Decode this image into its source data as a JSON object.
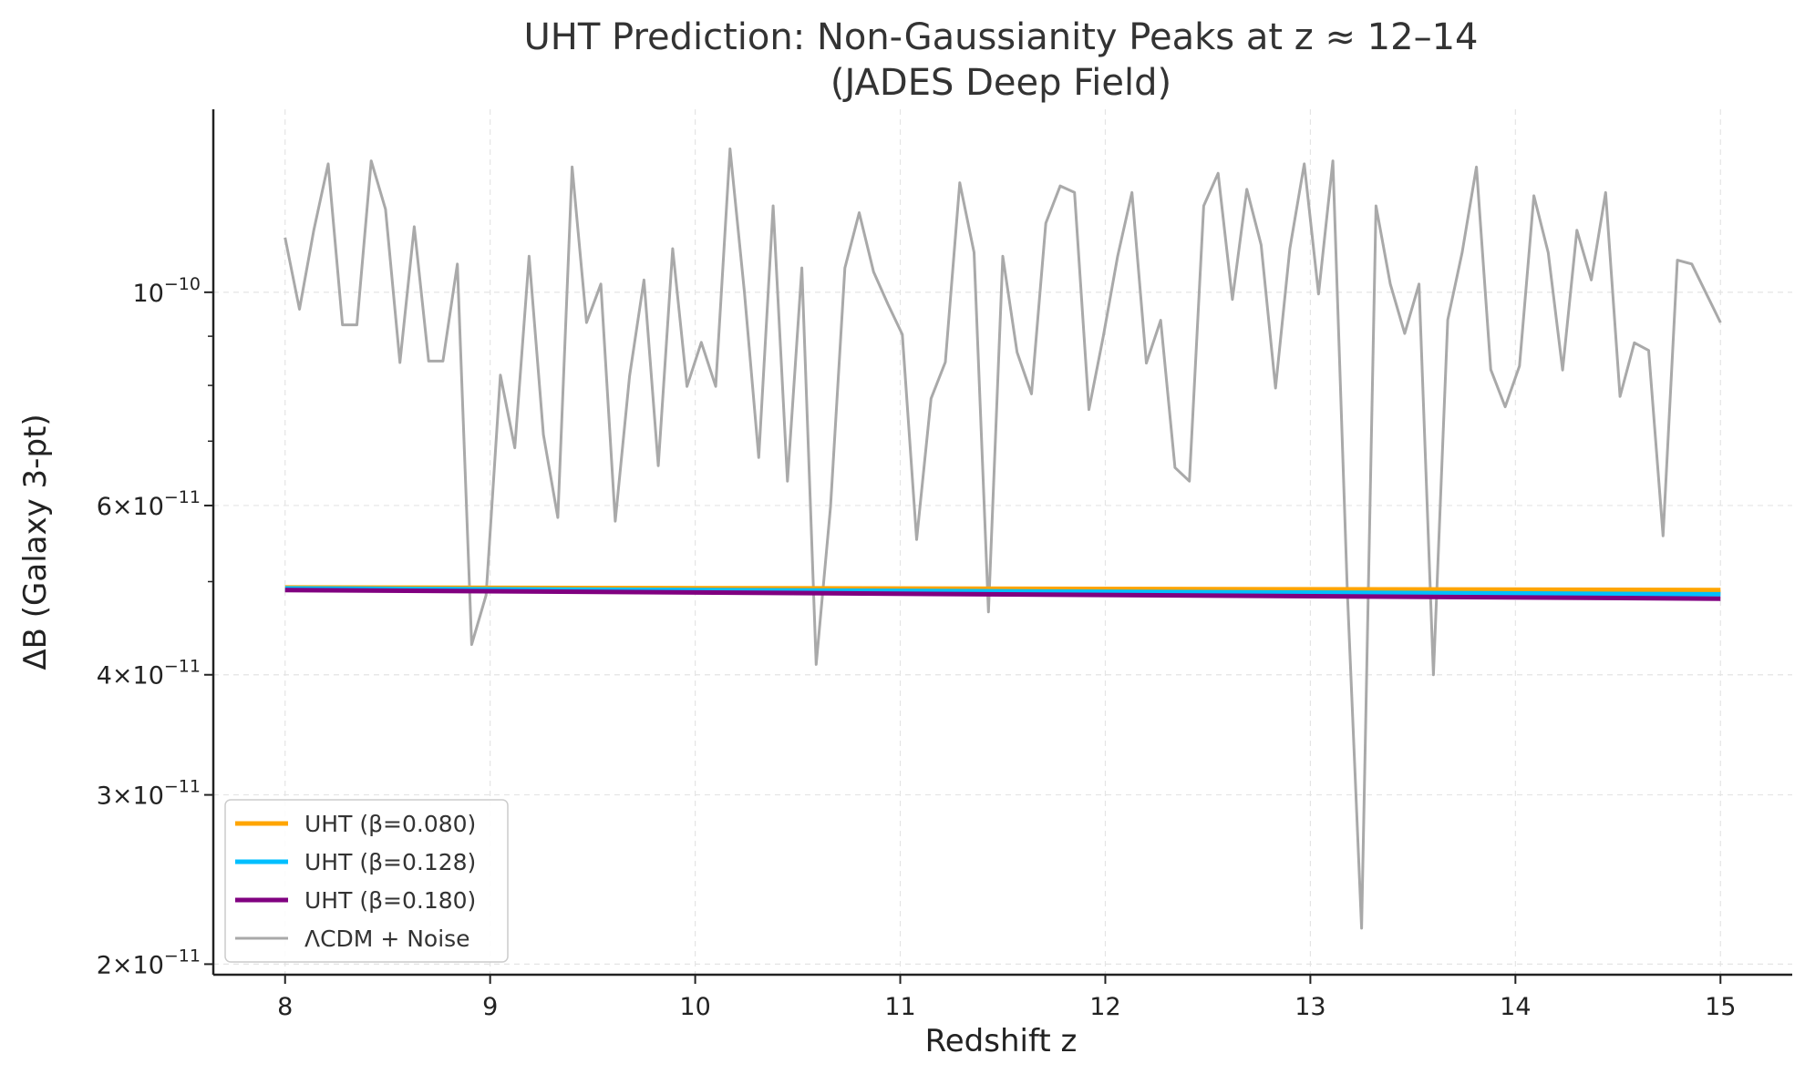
{
  "chart_data": {
    "type": "line",
    "title": "UHT Prediction: Non-Gaussianity Peaks at z ≈ 12–14",
    "subtitle": "(JADES Deep Field)",
    "xlabel": "Redshift z",
    "ylabel": "ΔB (Galaxy 3-pt)",
    "yscale": "log",
    "xlim": [
      7.65,
      15.35
    ],
    "ylim": [
      1.95e-11,
      1.55e-10
    ],
    "grid": true,
    "legend_position": "lower-left",
    "x_ticks": [
      {
        "value": 8,
        "label": "8"
      },
      {
        "value": 9,
        "label": "9"
      },
      {
        "value": 10,
        "label": "10"
      },
      {
        "value": 11,
        "label": "11"
      },
      {
        "value": 12,
        "label": "12"
      },
      {
        "value": 13,
        "label": "13"
      },
      {
        "value": 14,
        "label": "14"
      },
      {
        "value": 15,
        "label": "15"
      }
    ],
    "y_ticks": [
      {
        "value": 2e-11,
        "mantissa": "2",
        "base": "10",
        "exp": "−11"
      },
      {
        "value": 3e-11,
        "mantissa": "3",
        "base": "10",
        "exp": "−11"
      },
      {
        "value": 4e-11,
        "mantissa": "4",
        "base": "10",
        "exp": "−11"
      },
      {
        "value": 6e-11,
        "mantissa": "6",
        "base": "10",
        "exp": "−11"
      },
      {
        "value": 1e-10,
        "mantissa": "",
        "base": "10",
        "exp": "−10"
      }
    ],
    "y_minor_ticks": [
      5e-11,
      7e-11,
      8e-11,
      9e-11
    ],
    "series": [
      {
        "name": "UHT (β=0.080)",
        "color": "#FFA500",
        "line_width": 5,
        "x": [
          8,
          15
        ],
        "y": [
          4.93e-11,
          4.9e-11
        ]
      },
      {
        "name": "UHT (β=0.128)",
        "color": "#00BFFF",
        "line_width": 5,
        "x": [
          8,
          15
        ],
        "y": [
          4.92e-11,
          4.85e-11
        ]
      },
      {
        "name": "UHT (β=0.180)",
        "color": "#800080",
        "line_width": 5,
        "x": [
          8,
          15
        ],
        "y": [
          4.9e-11,
          4.8e-11
        ]
      },
      {
        "name": "ΛCDM + Noise",
        "color": "#A9A9A9",
        "line_width": 3,
        "x": [
          8.0,
          8.07,
          8.14,
          8.21,
          8.28,
          8.35,
          8.42,
          8.49,
          8.56,
          8.63,
          8.7,
          8.77,
          8.84,
          8.91,
          8.98,
          9.05,
          9.12,
          9.19,
          9.26,
          9.33,
          9.4,
          9.47,
          9.54,
          9.61,
          9.68,
          9.75,
          9.82,
          9.89,
          9.96,
          10.03,
          10.1,
          10.17,
          10.24,
          10.31,
          10.38,
          10.45,
          10.52,
          10.59,
          10.66,
          10.73,
          10.8,
          10.87,
          10.94,
          11.01,
          11.08,
          11.15,
          11.22,
          11.29,
          11.36,
          11.43,
          11.5,
          11.57,
          11.64,
          11.71,
          11.78,
          11.85,
          11.92,
          11.99,
          12.06,
          12.13,
          12.2,
          12.27,
          12.34,
          12.41,
          12.48,
          12.55,
          12.62,
          12.69,
          12.76,
          12.83,
          12.9,
          12.97,
          13.04,
          13.11,
          13.18,
          13.25,
          13.32,
          13.39,
          13.46,
          13.53,
          13.6,
          13.67,
          13.74,
          13.81,
          13.88,
          13.95,
          14.02,
          14.09,
          14.16,
          14.23,
          14.3,
          14.37,
          14.44,
          14.51,
          14.58,
          14.65,
          14.72,
          14.79,
          14.86,
          15.0
        ],
        "y": [
          1.14e-10,
          9.6e-11,
          1.16e-10,
          1.36e-10,
          9.25e-11,
          9.25e-11,
          1.37e-10,
          1.22e-10,
          8.45e-11,
          1.17e-10,
          8.48e-11,
          8.48e-11,
          1.07e-10,
          4.3e-11,
          4.84e-11,
          8.2e-11,
          6.89e-11,
          1.09e-10,
          7.11e-11,
          5.83e-11,
          1.35e-10,
          9.3e-11,
          1.02e-10,
          5.78e-11,
          8.18e-11,
          1.03e-10,
          6.6e-11,
          1.11e-10,
          7.98e-11,
          8.87e-11,
          7.98e-11,
          1.41e-10,
          1e-10,
          6.73e-11,
          1.23e-10,
          6.36e-11,
          1.06e-10,
          4.1e-11,
          5.99e-11,
          1.06e-10,
          1.21e-10,
          1.05e-10,
          9.72e-11,
          9.04e-11,
          5.53e-11,
          7.75e-11,
          8.46e-11,
          1.3e-10,
          1.1e-10,
          4.65e-11,
          1.09e-10,
          8.66e-11,
          7.84e-11,
          1.18e-10,
          1.29e-10,
          1.27e-10,
          7.55e-11,
          8.99e-11,
          1.09e-10,
          1.27e-10,
          8.44e-11,
          9.35e-11,
          6.57e-11,
          6.36e-11,
          1.23e-10,
          1.33e-10,
          9.83e-11,
          1.28e-10,
          1.12e-10,
          7.95e-11,
          1.11e-10,
          1.36e-10,
          9.96e-11,
          1.37e-10,
          4.9e-11,
          2.18e-11,
          1.23e-10,
          1.02e-10,
          9.06e-11,
          1.02e-10,
          4e-11,
          9.36e-11,
          1.1e-10,
          1.35e-10,
          8.31e-11,
          7.6e-11,
          8.38e-11,
          1.26e-10,
          1.1e-10,
          8.3e-11,
          1.16e-10,
          1.03e-10,
          1.27e-10,
          7.79e-11,
          8.86e-11,
          8.7e-11,
          5.58e-11,
          1.08e-10,
          1.07e-10,
          9.3e-11
        ]
      }
    ]
  }
}
